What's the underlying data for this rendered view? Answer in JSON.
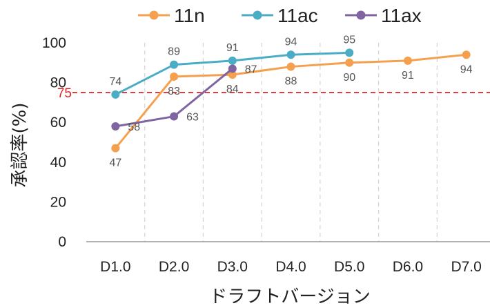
{
  "chart_data": {
    "type": "line",
    "categories": [
      "D1.0",
      "D2.0",
      "D3.0",
      "D4.0",
      "D5.0",
      "D6.0",
      "D7.0"
    ],
    "series": [
      {
        "name": "11n",
        "color": "#F5A04E",
        "values": [
          47,
          83,
          84,
          88,
          90,
          91,
          94
        ]
      },
      {
        "name": "11ac",
        "color": "#4BACC6",
        "values": [
          74,
          89,
          91,
          94,
          95,
          null,
          null
        ]
      },
      {
        "name": "11ax",
        "color": "#8064A2",
        "values": [
          58,
          63,
          87,
          null,
          null,
          null,
          null
        ]
      }
    ],
    "reference_line": {
      "value": 75,
      "label": "75",
      "color": "#E02020",
      "style": "dashed"
    },
    "xlabel": "ドラフトバージョン",
    "ylabel": "承認率(%)",
    "ylim": [
      0,
      100
    ],
    "yticks": [
      "0",
      "20",
      "40",
      "60",
      "80",
      "100"
    ],
    "grid": "vertical dashed",
    "legend_position": "top"
  }
}
